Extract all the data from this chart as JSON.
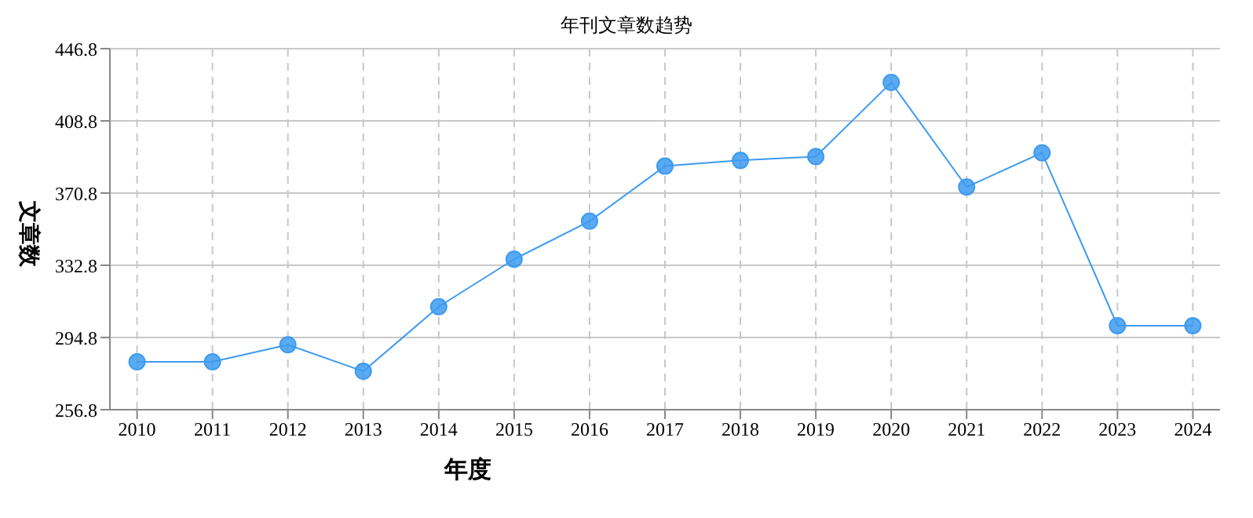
{
  "chart_data": {
    "type": "line",
    "title": "年刊文章数趋势",
    "xlabel": "年度",
    "ylabel": "文章数",
    "categories": [
      "2010",
      "2011",
      "2012",
      "2013",
      "2014",
      "2015",
      "2016",
      "2017",
      "2018",
      "2019",
      "2020",
      "2021",
      "2022",
      "2023",
      "2024"
    ],
    "series": [
      {
        "color": "#3d9bf0",
        "values": [
          282,
          282,
          291,
          277,
          311,
          336,
          356,
          385,
          388,
          390,
          429,
          374,
          392,
          301,
          301
        ]
      }
    ],
    "ylim": [
      256.8,
      446.8
    ],
    "yticks": [
      256.8,
      294.8,
      332.8,
      370.8,
      408.8,
      446.8
    ],
    "grid": true,
    "legend": false,
    "marker": "circle",
    "line_style": "solid"
  }
}
